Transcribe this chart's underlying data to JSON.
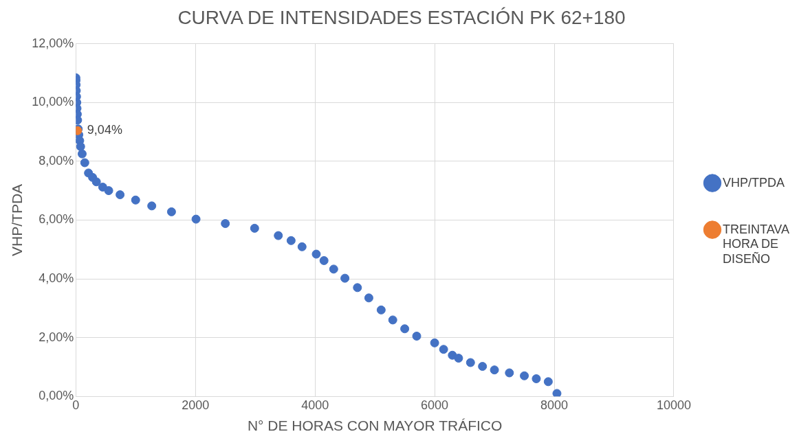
{
  "chart_data": {
    "type": "scatter",
    "title": "CURVA DE INTENSIDADES ESTACIÓN PK 62+180",
    "xlabel": "N° DE HORAS CON MAYOR TRÁFICO",
    "ylabel": "VHP/TPDA",
    "series": [
      {
        "name": "VHP/TPDA",
        "color": "#4472c4",
        "x": [
          1,
          3,
          5,
          8,
          12,
          16,
          20,
          25,
          30,
          40,
          50,
          65,
          80,
          106,
          150,
          212,
          280,
          344,
          450,
          550,
          740,
          1000,
          1270,
          1600,
          2010,
          2500,
          2990,
          3386,
          3600,
          3783,
          4021,
          4150,
          4312,
          4500,
          4709,
          4900,
          5106,
          5300,
          5500,
          5700,
          6000,
          6150,
          6296,
          6400,
          6600,
          6800,
          7000,
          7250,
          7500,
          7700,
          7900,
          8045
        ],
        "values": [
          10.84,
          10.75,
          10.6,
          10.4,
          10.2,
          10.0,
          9.8,
          9.6,
          9.4,
          9.1,
          8.9,
          8.7,
          8.5,
          8.25,
          7.95,
          7.6,
          7.45,
          7.3,
          7.12,
          7.0,
          6.86,
          6.68,
          6.48,
          6.28,
          6.03,
          5.88,
          5.72,
          5.47,
          5.3,
          5.09,
          4.84,
          4.62,
          4.33,
          4.02,
          3.7,
          3.35,
          2.94,
          2.6,
          2.3,
          2.05,
          1.82,
          1.6,
          1.4,
          1.3,
          1.15,
          1.02,
          0.9,
          0.8,
          0.7,
          0.6,
          0.5,
          0.1
        ]
      },
      {
        "name": "TREINTAVA HORA DE DISEÑO",
        "color": "#ed7d31",
        "x": [
          30
        ],
        "values": [
          9.04
        ],
        "value_labels": [
          "9,04%"
        ]
      }
    ],
    "xlim": [
      0,
      10000
    ],
    "xticks": [
      0,
      2000,
      4000,
      6000,
      8000,
      10000
    ],
    "ylim": [
      0,
      12
    ],
    "yticks": [
      {
        "value": 0,
        "label": "0,00%"
      },
      {
        "value": 2,
        "label": "2,00%"
      },
      {
        "value": 4,
        "label": "4,00%"
      },
      {
        "value": 6,
        "label": "6,00%"
      },
      {
        "value": 8,
        "label": "8,00%"
      },
      {
        "value": 10,
        "label": "10,00%"
      },
      {
        "value": 12,
        "label": "12,00%"
      }
    ],
    "grid": true,
    "legend": "right",
    "marker": "circle"
  }
}
